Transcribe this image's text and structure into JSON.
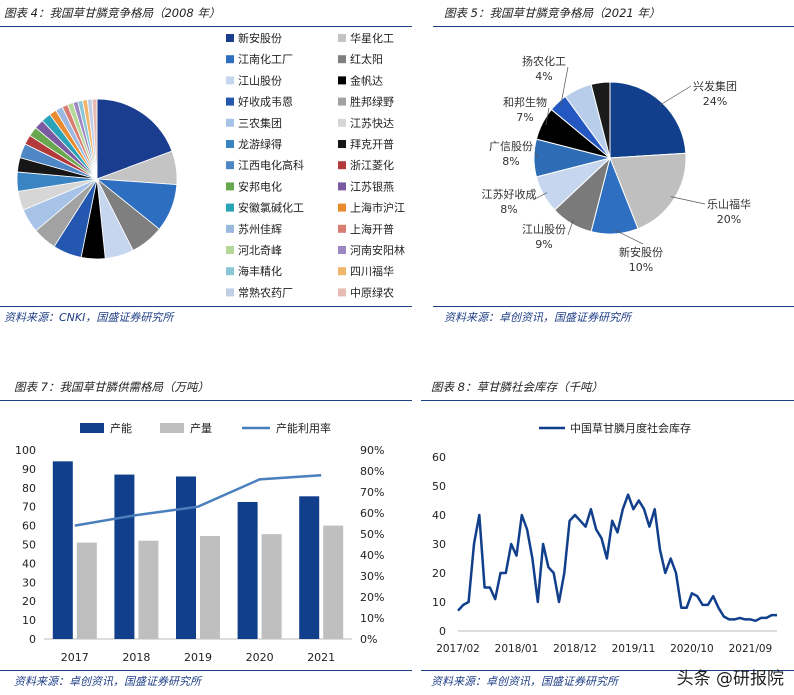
{
  "watermark": "头条 @研报院",
  "panels": [
    {
      "title": "图表 4：我国草甘膦竞争格局（2008 年）",
      "source": "资料来源：CNKI，国盛证券研究所"
    },
    {
      "title": "图表 5：我国草甘膦竞争格局（2021 年）",
      "source": "资料来源：卓创资讯，国盛证券研究所"
    },
    {
      "title": "图表 7：我国草甘膦供需格局（万吨）",
      "source": "资料来源：卓创资讯，国盛证券研究所"
    },
    {
      "title": "图表 8：草甘膦社会库存（千吨）",
      "source": "资料来源：卓创资讯，国盛证券研究所"
    }
  ],
  "chart_data": [
    {
      "type": "pie",
      "title": "",
      "labels": [
        "新安股份",
        "华星化工",
        "江南化工厂",
        "红太阳",
        "江山股份",
        "金帆达",
        "好收成韦恩",
        "胜邦绿野",
        "三农集团",
        "江苏快达",
        "龙游绿得",
        "拜克开普",
        "江西电化高科",
        "浙江菱化",
        "安邦电化",
        "江苏银燕",
        "安徽氯碱化工",
        "上海市沪江",
        "苏州佳辉",
        "上海开普",
        "河北奇峰",
        "河南安阳林",
        "海丰精化",
        "四川福华",
        "常熟农药厂",
        "中原绿农"
      ],
      "values": [
        20,
        7,
        10,
        7,
        6,
        5,
        6,
        5,
        5,
        4,
        4,
        3,
        3,
        2,
        2,
        2,
        2,
        1.5,
        1.5,
        1.2,
        1.2,
        1,
        1,
        1,
        1,
        1
      ],
      "colors": [
        "#1a3d8f",
        "#c4c4c4",
        "#2e6ec0",
        "#7f7f7f",
        "#c6d6ee",
        "#000000",
        "#2457b0",
        "#a2a2a2",
        "#a7c3e8",
        "#d6d6d6",
        "#3a84c4",
        "#161616",
        "#4f86c6",
        "#b23a3a",
        "#6aa84f",
        "#7a5aa0",
        "#2aa3b8",
        "#e88b2e",
        "#9ab8e0",
        "#d97d72",
        "#b6d79a",
        "#9d87c2",
        "#89c7d6",
        "#f0b46a",
        "#c0cfe6",
        "#e7bab3"
      ],
      "legend_position": "right"
    },
    {
      "type": "pie",
      "title": "",
      "labels": [
        "兴发集团",
        "乐山福华",
        "新安股份",
        "江山股份",
        "江苏好收成",
        "广信股份",
        "和邦生物",
        "扬农化工"
      ],
      "values": [
        24,
        20,
        10,
        9,
        8,
        8,
        7,
        4
      ],
      "labels_text": [
        "24%",
        "20%",
        "10%",
        "9%",
        "8%",
        "8%",
        "7%",
        "4%"
      ],
      "colors": [
        "#123f8c",
        "#bfbfbf",
        "#2f6fc2",
        "#7a7a7a",
        "#c5d6ee",
        "#2e6cb5",
        "#000000",
        "#2457c0"
      ],
      "other_values": [
        6,
        4
      ],
      "other_colors": [
        "#b7cdea",
        "#1a1a1a"
      ]
    },
    {
      "type": "bar",
      "title": "",
      "categories": [
        "2017",
        "2018",
        "2019",
        "2020",
        "2021"
      ],
      "series": [
        {
          "name": "产能",
          "values": [
            94,
            87,
            86,
            72.5,
            75.5
          ],
          "color": "#123f8c"
        },
        {
          "name": "产量",
          "values": [
            51,
            52,
            54.5,
            55.5,
            60
          ],
          "color": "#bfbfbf"
        },
        {
          "name": "产能利用率",
          "values": [
            0.54,
            0.59,
            0.63,
            0.76,
            0.78
          ],
          "color": "#4a7fbe",
          "axis": "right",
          "kind": "line"
        }
      ],
      "ylim": [
        0,
        100
      ],
      "yticks": [
        "0",
        "10",
        "20",
        "30",
        "40",
        "50",
        "60",
        "70",
        "80",
        "90",
        "100"
      ],
      "y2lim": [
        0,
        0.9
      ],
      "y2ticks": [
        "0%",
        "10%",
        "20%",
        "30%",
        "40%",
        "50%",
        "60%",
        "70%",
        "80%",
        "90%"
      ],
      "legend_position": "top"
    },
    {
      "type": "line",
      "title": "",
      "series": [
        {
          "name": "中国草甘膦月度社会库存",
          "color": "#123f8c",
          "values": [
            7,
            9,
            10,
            30,
            40,
            15,
            15,
            11,
            20,
            20,
            30,
            26,
            40,
            35,
            25,
            10,
            30,
            22,
            20,
            10,
            20,
            38,
            40,
            38,
            36,
            42,
            35,
            32,
            25,
            38,
            34,
            42,
            47,
            42,
            45,
            42,
            36,
            42,
            28,
            20,
            25,
            20,
            8,
            8,
            13,
            12,
            9,
            9,
            12,
            8,
            5,
            4,
            4,
            4.5,
            4,
            4,
            3.5,
            4.5,
            4.5,
            5.5,
            5.5
          ]
        }
      ],
      "xticks": [
        "2017/02",
        "2018/01",
        "2018/12",
        "2019/11",
        "2020/10",
        "2021/09"
      ],
      "ylim": [
        0,
        60
      ],
      "yticks": [
        "0",
        "10",
        "20",
        "30",
        "40",
        "50",
        "60"
      ],
      "legend_position": "top"
    }
  ]
}
